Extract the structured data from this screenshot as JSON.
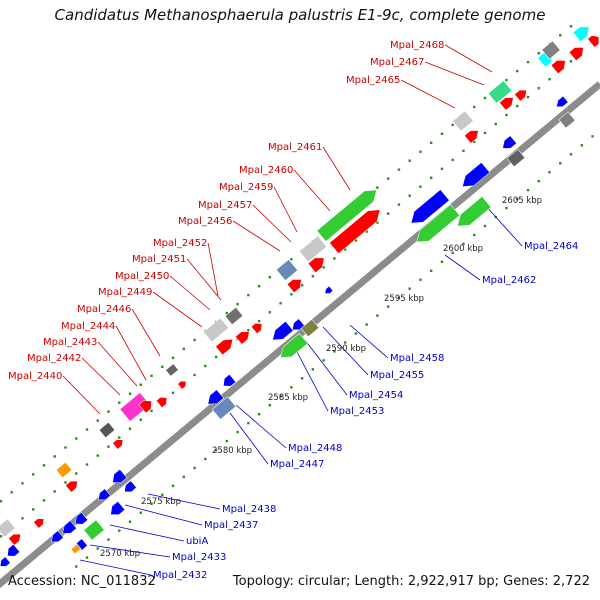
{
  "title": "Candidatus Methanosphaerula palustris E1-9c, complete genome",
  "footer": {
    "accession": "Accession: NC_011832",
    "summary": "Topology: circular; Length: 2,922,917 bp; Genes: 2,722"
  },
  "colors": {
    "backbone": "#8c8c8c",
    "label_forward": "#cc0000",
    "label_reverse": "#0000cc",
    "tick": "#2e8b1e"
  },
  "ticks": [
    "2570 kbp",
    "2575 kbp",
    "2580 kbp",
    "2585 kbp",
    "2590 kbp",
    "2595 kbp",
    "2600 kbp",
    "2605 kbp"
  ],
  "labels_forward": [
    "Mpal_2440",
    "Mpal_2442",
    "Mpal_2443",
    "Mpal_2444",
    "Mpal_2446",
    "Mpal_2449",
    "Mpal_2450",
    "Mpal_2451",
    "Mpal_2452",
    "Mpal_2456",
    "Mpal_2457",
    "Mpal_2459",
    "Mpal_2460",
    "Mpal_2461",
    "Mpal_2465",
    "Mpal_2467",
    "Mpal_2468"
  ],
  "labels_reverse": [
    "Mpal_2432",
    "Mpal_2433",
    "ubiA",
    "Mpal_2437",
    "Mpal_2438",
    "Mpal_2447",
    "Mpal_2448",
    "Mpal_2453",
    "Mpal_2454",
    "Mpal_2455",
    "Mpal_2458",
    "Mpal_2462",
    "Mpal_2464"
  ]
}
